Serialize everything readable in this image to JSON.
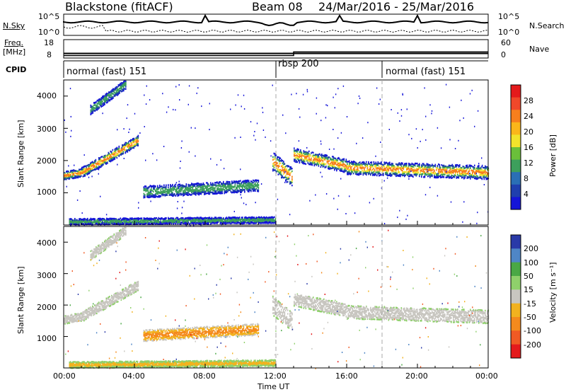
{
  "header": {
    "station": "Blackstone (fitACF)",
    "beam": "Beam 08",
    "dates": "24/Mar/2016 - 25/Mar/2016"
  },
  "summary_panels": {
    "nsky_label": "N.Sky",
    "nsearch_label": "N.Search",
    "freq_label": "Freq.",
    "freq_unit": "[MHz]",
    "nave_label": "Nave",
    "cpid_label": "CPID",
    "nsky_ticks": [
      "10^5",
      "10^0"
    ],
    "nsearch_ticks": [
      "10^5",
      "10^0"
    ],
    "freq_ticks": [
      "18",
      "8"
    ],
    "nave_ticks": [
      "60",
      "0"
    ],
    "freq_series_mhz": [
      [
        0,
        10.5
      ],
      [
        24,
        10.5
      ]
    ],
    "nave_series": [
      [
        0,
        8
      ],
      [
        13,
        8
      ],
      [
        13,
        20
      ],
      [
        24,
        20
      ]
    ]
  },
  "cpid_segments": [
    {
      "label": "normal (fast) 151",
      "start_ut": 0
    },
    {
      "label": "rbsp 200",
      "start_ut": 12
    },
    {
      "label": "normal (fast) 151",
      "start_ut": 18
    }
  ],
  "chart_data": [
    {
      "type": "heatmap",
      "xlabel": "Time UT",
      "ylabel": "Slant Range [km]",
      "xlim": [
        0,
        24
      ],
      "ylim": [
        0,
        4500
      ],
      "x_ticks": [
        "00:00",
        "04:00",
        "08:00",
        "12:00",
        "16:00",
        "20:00",
        "00:00"
      ],
      "y_ticks": [
        1000,
        2000,
        3000,
        4000
      ],
      "colorbar": {
        "label": "Power [dB]",
        "ticks": [
          "28",
          "24",
          "20",
          "16",
          "12",
          "8",
          "4"
        ],
        "colors": [
          "#e41a1c",
          "#f0482a",
          "#f77f1d",
          "#fbb61a",
          "#f2e32b",
          "#6abf3a",
          "#3d9f5c",
          "#2a6fb5",
          "#1f3fae",
          "#1515d8"
        ]
      },
      "scatter_bands": [
        {
          "name": "early",
          "x": [
            0,
            0.5,
            1,
            1.5,
            2,
            2.5,
            3,
            3.5,
            4
          ],
          "y": [
            1600,
            1650,
            1700,
            1850,
            2100,
            2300,
            2450,
            2550,
            2700
          ]
        },
        {
          "name": "high",
          "x": [
            1.5,
            2,
            2.5,
            3,
            3.5,
            4
          ],
          "y": [
            3600,
            3800,
            3950,
            4100,
            4250,
            4400
          ]
        },
        {
          "name": "mid",
          "x": [
            4.5,
            6,
            7,
            8,
            9,
            10,
            11
          ],
          "y": [
            1050,
            1100,
            1200,
            1250,
            1150,
            1150,
            1200
          ]
        },
        {
          "name": "afternoon",
          "x": [
            11.8,
            12,
            12.5,
            13,
            14,
            15,
            16,
            18,
            20,
            22,
            24
          ],
          "y": [
            2000,
            1800,
            1500,
            2300,
            2100,
            1900,
            1800,
            1700,
            1700,
            1650,
            1650
          ]
        }
      ]
    },
    {
      "type": "heatmap",
      "xlabel": "Time UT",
      "ylabel": "Slant Range [km]",
      "xlim": [
        0,
        24
      ],
      "ylim": [
        0,
        4500
      ],
      "x_ticks": [
        "00:00",
        "04:00",
        "08:00",
        "12:00",
        "16:00",
        "20:00",
        "00:00"
      ],
      "y_ticks": [
        1000,
        2000,
        3000,
        4000
      ],
      "colorbar": {
        "label": "Velocity [m s⁻¹]",
        "ticks": [
          "200",
          "100",
          "50",
          "15",
          "-15",
          "-50",
          "-100",
          "-200"
        ],
        "colors": [
          "#2a3aa8",
          "#4f86c6",
          "#4aa845",
          "#8fd06b",
          "#c8c6c0",
          "#f2b21f",
          "#f48a1d",
          "#f05a24",
          "#e41a1c"
        ]
      }
    }
  ]
}
